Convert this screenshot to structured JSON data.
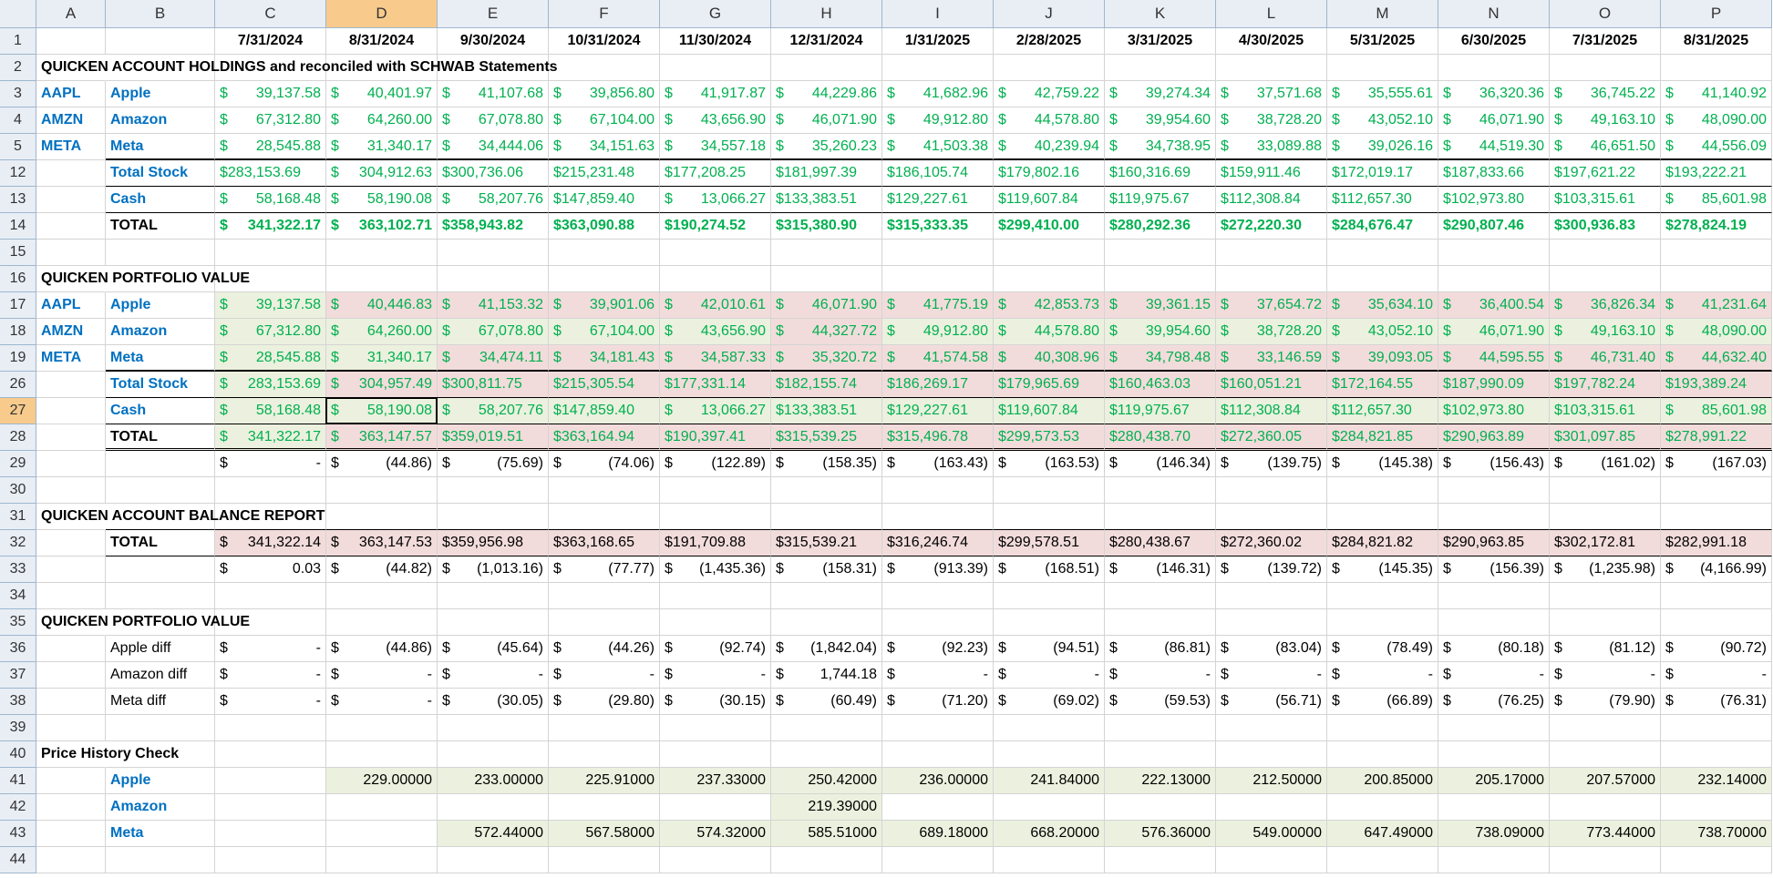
{
  "columns": [
    "A",
    "B",
    "C",
    "D",
    "E",
    "F",
    "G",
    "H",
    "I",
    "J",
    "K",
    "L",
    "M",
    "N",
    "O",
    "P"
  ],
  "rows": [
    {
      "number": 1,
      "cells": [
        null,
        null,
        "7/31/2024",
        "8/31/2024",
        "9/30/2024",
        "10/31/2024",
        "11/30/2024",
        "12/31/2024",
        "1/31/2025",
        "2/28/2025",
        "3/31/2025",
        "4/30/2025",
        "5/31/2025",
        "6/30/2025",
        "7/31/2025",
        "8/31/2025"
      ]
    },
    {
      "number": 2,
      "cells": [
        "QUICKEN  ACCOUNT HOLDINGS and reconciled with SCHWAB Statements",
        null,
        null,
        null,
        null,
        null,
        null,
        null,
        null,
        null,
        null,
        null,
        null,
        null,
        null,
        null
      ]
    },
    {
      "number": 3,
      "cells": [
        "AAPL",
        "Apple",
        "$ 39,137.58",
        "$ 40,401.97",
        "$ 41,107.68",
        "$ 39,856.80",
        "$ 41,917.87",
        "$ 44,229.86",
        "$ 41,682.96",
        "$ 42,759.22",
        "$ 39,274.34",
        "$ 37,571.68",
        "$ 35,555.61",
        "$ 36,320.36",
        "$ 36,745.22",
        "$ 41,140.92"
      ]
    },
    {
      "number": 4,
      "cells": [
        "AMZN",
        "Amazon",
        "$ 67,312.80",
        "$ 64,260.00",
        "$ 67,078.80",
        "$ 67,104.00",
        "$ 43,656.90",
        "$ 46,071.90",
        "$ 49,912.80",
        "$ 44,578.80",
        "$ 39,954.60",
        "$ 38,728.20",
        "$ 43,052.10",
        "$ 46,071.90",
        "$ 49,163.10",
        "$ 48,090.00"
      ]
    },
    {
      "number": 5,
      "cells": [
        "META",
        "Meta",
        "$ 28,545.88",
        "$ 31,340.17",
        "$ 34,444.06",
        "$ 34,151.63",
        "$ 34,557.18",
        "$ 35,260.23",
        "$ 41,503.38",
        "$ 40,239.94",
        "$ 34,738.95",
        "$ 33,089.88",
        "$ 39,026.16",
        "$ 44,519.30",
        "$ 46,651.50",
        "$ 44,556.09"
      ]
    },
    {
      "number": 12,
      "cells": [
        null,
        "Total Stock",
        "$283,153.69",
        "$ 304,912.63",
        "$300,736.06",
        "$215,231.48",
        "$177,208.25",
        "$181,997.39",
        "$186,105.74",
        "$179,802.16",
        "$160,316.69",
        "$159,911.46",
        "$172,019.17",
        "$187,833.66",
        "$197,621.22",
        "$193,222.21"
      ]
    },
    {
      "number": 13,
      "cells": [
        null,
        "Cash",
        "$ 58,168.48",
        "$ 58,190.08",
        "$ 58,207.76",
        "$147,859.40",
        "$ 13,066.27",
        "$133,383.51",
        "$129,227.61",
        "$119,607.84",
        "$119,975.67",
        "$112,308.84",
        "$112,657.30",
        "$102,973.80",
        "$103,315.61",
        "$ 85,601.98"
      ]
    },
    {
      "number": 14,
      "cells": [
        null,
        "TOTAL",
        "$ 341,322.17",
        "$ 363,102.71",
        "$358,943.82",
        "$363,090.88",
        "$190,274.52",
        "$315,380.90",
        "$315,333.35",
        "$299,410.00",
        "$280,292.36",
        "$272,220.30",
        "$284,676.47",
        "$290,807.46",
        "$300,936.83",
        "$278,824.19"
      ]
    },
    {
      "number": 15,
      "cells": [
        null,
        null,
        null,
        null,
        null,
        null,
        null,
        null,
        null,
        null,
        null,
        null,
        null,
        null,
        null,
        null
      ]
    },
    {
      "number": 16,
      "cells": [
        "QUICKEN PORTFOLIO VALUE",
        null,
        null,
        null,
        null,
        null,
        null,
        null,
        null,
        null,
        null,
        null,
        null,
        null,
        null,
        null
      ]
    },
    {
      "number": 17,
      "cells": [
        "AAPL",
        "Apple",
        "$ 39,137.58",
        "$ 40,446.83",
        "$ 41,153.32",
        "$ 39,901.06",
        "$ 42,010.61",
        "$ 46,071.90",
        "$ 41,775.19",
        "$ 42,853.73",
        "$ 39,361.15",
        "$ 37,654.72",
        "$ 35,634.10",
        "$ 36,400.54",
        "$ 36,826.34",
        "$ 41,231.64"
      ]
    },
    {
      "number": 18,
      "cells": [
        "AMZN",
        "Amazon",
        "$ 67,312.80",
        "$ 64,260.00",
        "$ 67,078.80",
        "$ 67,104.00",
        "$ 43,656.90",
        "$ 44,327.72",
        "$ 49,912.80",
        "$ 44,578.80",
        "$ 39,954.60",
        "$ 38,728.20",
        "$ 43,052.10",
        "$ 46,071.90",
        "$ 49,163.10",
        "$ 48,090.00"
      ]
    },
    {
      "number": 19,
      "cells": [
        "META",
        "Meta",
        "$ 28,545.88",
        "$ 31,340.17",
        "$ 34,474.11",
        "$ 34,181.43",
        "$ 34,587.33",
        "$ 35,320.72",
        "$ 41,574.58",
        "$ 40,308.96",
        "$ 34,798.48",
        "$ 33,146.59",
        "$ 39,093.05",
        "$ 44,595.55",
        "$ 46,731.40",
        "$ 44,632.40"
      ]
    },
    {
      "number": 26,
      "cells": [
        null,
        "Total Stock",
        "$ 283,153.69",
        "$ 304,957.49",
        "$300,811.75",
        "$215,305.54",
        "$177,331.14",
        "$182,155.74",
        "$186,269.17",
        "$179,965.69",
        "$160,463.03",
        "$160,051.21",
        "$172,164.55",
        "$187,990.09",
        "$197,782.24",
        "$193,389.24"
      ]
    },
    {
      "number": 27,
      "cells": [
        null,
        "Cash",
        "$ 58,168.48",
        "$ 58,190.08",
        "$ 58,207.76",
        "$147,859.40",
        "$ 13,066.27",
        "$133,383.51",
        "$129,227.61",
        "$119,607.84",
        "$119,975.67",
        "$112,308.84",
        "$112,657.30",
        "$102,973.80",
        "$103,315.61",
        "$ 85,601.98"
      ]
    },
    {
      "number": 28,
      "cells": [
        null,
        "TOTAL",
        "$ 341,322.17",
        "$ 363,147.57",
        "$359,019.51",
        "$363,164.94",
        "$190,397.41",
        "$315,539.25",
        "$315,496.78",
        "$299,573.53",
        "$280,438.70",
        "$272,360.05",
        "$284,821.85",
        "$290,963.89",
        "$301,097.85",
        "$278,991.22"
      ]
    },
    {
      "number": 29,
      "cells": [
        null,
        null,
        "$ -",
        "$ (44.86)",
        "$ (75.69)",
        "$ (74.06)",
        "$ (122.89)",
        "$ (158.35)",
        "$ (163.43)",
        "$ (163.53)",
        "$ (146.34)",
        "$ (139.75)",
        "$ (145.38)",
        "$ (156.43)",
        "$ (161.02)",
        "$ (167.03)"
      ]
    },
    {
      "number": 30,
      "cells": [
        null,
        null,
        null,
        null,
        null,
        null,
        null,
        null,
        null,
        null,
        null,
        null,
        null,
        null,
        null,
        null
      ]
    },
    {
      "number": 31,
      "cells": [
        "QUICKEN ACCOUNT BALANCE REPORT",
        null,
        null,
        null,
        null,
        null,
        null,
        null,
        null,
        null,
        null,
        null,
        null,
        null,
        null,
        null
      ]
    },
    {
      "number": 32,
      "cells": [
        null,
        "TOTAL",
        "$ 341,322.14",
        "$ 363,147.53",
        "$359,956.98",
        "$363,168.65",
        "$191,709.88",
        "$315,539.21",
        "$316,246.74",
        "$299,578.51",
        "$280,438.67",
        "$272,360.02",
        "$284,821.82",
        "$290,963.85",
        "$302,172.81",
        "$282,991.18"
      ]
    },
    {
      "number": 33,
      "cells": [
        null,
        null,
        "$ 0.03",
        "$ (44.82)",
        "$ (1,013.16)",
        "$ (77.77)",
        "$ (1,435.36)",
        "$ (158.31)",
        "$ (913.39)",
        "$ (168.51)",
        "$ (146.31)",
        "$ (139.72)",
        "$ (145.35)",
        "$ (156.39)",
        "$ (1,235.98)",
        "$ (4,166.99)"
      ]
    },
    {
      "number": 34,
      "cells": [
        null,
        null,
        null,
        null,
        null,
        null,
        null,
        null,
        null,
        null,
        null,
        null,
        null,
        null,
        null,
        null
      ]
    },
    {
      "number": 35,
      "cells": [
        "QUICKEN PORTFOLIO VALUE",
        null,
        null,
        null,
        null,
        null,
        null,
        null,
        null,
        null,
        null,
        null,
        null,
        null,
        null,
        null
      ]
    },
    {
      "number": 36,
      "cells": [
        null,
        "Apple diff",
        "$ -",
        "$ (44.86)",
        "$ (45.64)",
        "$ (44.26)",
        "$ (92.74)",
        "$ (1,842.04)",
        "$ (92.23)",
        "$ (94.51)",
        "$ (86.81)",
        "$ (83.04)",
        "$ (78.49)",
        "$ (80.18)",
        "$ (81.12)",
        "$ (90.72)"
      ]
    },
    {
      "number": 37,
      "cells": [
        null,
        "Amazon diff",
        "$ -",
        "$ -",
        "$ -",
        "$ -",
        "$ -",
        "$ 1,744.18",
        "$ -",
        "$ -",
        "$ -",
        "$ -",
        "$ -",
        "$ -",
        "$ -",
        "$ -"
      ]
    },
    {
      "number": 38,
      "cells": [
        null,
        "Meta diff",
        "$ -",
        "$ -",
        "$ (30.05)",
        "$ (29.80)",
        "$ (30.15)",
        "$ (60.49)",
        "$ (71.20)",
        "$ (69.02)",
        "$ (59.53)",
        "$ (56.71)",
        "$ (66.89)",
        "$ (76.25)",
        "$ (79.90)",
        "$ (76.31)"
      ]
    },
    {
      "number": 39,
      "cells": [
        null,
        null,
        null,
        null,
        null,
        null,
        null,
        null,
        null,
        null,
        null,
        null,
        null,
        null,
        null,
        null
      ]
    },
    {
      "number": 40,
      "cells": [
        "Price History Check",
        null,
        null,
        null,
        null,
        null,
        null,
        null,
        null,
        null,
        null,
        null,
        null,
        null,
        null,
        null
      ]
    },
    {
      "number": 41,
      "cells": [
        null,
        "Apple",
        null,
        "229.00000",
        "233.00000",
        "225.91000",
        "237.33000",
        "250.42000",
        "236.00000",
        "241.84000",
        "222.13000",
        "212.50000",
        "200.85000",
        "205.17000",
        "207.57000",
        "232.14000"
      ]
    },
    {
      "number": 42,
      "cells": [
        null,
        "Amazon",
        null,
        null,
        null,
        null,
        null,
        "219.39000",
        null,
        null,
        null,
        null,
        null,
        null,
        null,
        null
      ]
    },
    {
      "number": 43,
      "cells": [
        null,
        "Meta",
        null,
        null,
        "572.44000",
        "567.58000",
        "574.32000",
        "585.51000",
        "689.18000",
        "668.20000",
        "576.36000",
        "549.00000",
        "647.49000",
        "738.09000",
        "773.44000",
        "738.70000"
      ]
    },
    {
      "number": 44,
      "cells": [
        null,
        null,
        null,
        null,
        null,
        null,
        null,
        null,
        null,
        null,
        null,
        null,
        null,
        null,
        null,
        null
      ]
    }
  ]
}
